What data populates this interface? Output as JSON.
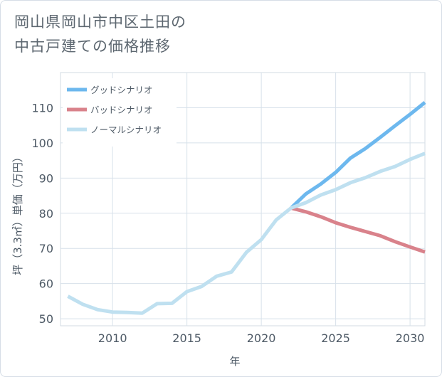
{
  "title_lines": [
    "岡山県岡山市中区土田の",
    "中古戸建ての価格推移"
  ],
  "chart_data": {
    "type": "line",
    "title": "岡山県岡山市中区土田の中古戸建ての価格推移",
    "xlabel": "年",
    "ylabel": "坪（3.3㎡）単価（万円）",
    "xlim": [
      2006.5,
      2031
    ],
    "ylim": [
      48,
      120
    ],
    "x_ticks": [
      2010,
      2015,
      2020,
      2025,
      2030
    ],
    "y_ticks": [
      50,
      60,
      70,
      80,
      90,
      100,
      110
    ],
    "grid": true,
    "legend_position": "top-left",
    "series": [
      {
        "name": "グッドシナリオ",
        "color": "#6db8ee",
        "x": [
          2022,
          2023,
          2024,
          2025,
          2026,
          2027,
          2028,
          2029,
          2030,
          2031
        ],
        "values": [
          81.5,
          85.5,
          88.3,
          91.6,
          95.7,
          98.4,
          101.6,
          104.9,
          108.1,
          111.5
        ]
      },
      {
        "name": "バッドシナリオ",
        "color": "#d9828b",
        "x": [
          2022,
          2023,
          2024,
          2025,
          2026,
          2027,
          2028,
          2029,
          2030,
          2031
        ],
        "values": [
          81.5,
          80.4,
          79.0,
          77.3,
          76.0,
          74.8,
          73.6,
          71.9,
          70.4,
          69.0
        ]
      },
      {
        "name": "ノーマルシナリオ",
        "color": "#bfe0f0",
        "x": [
          2007,
          2008,
          2009,
          2010,
          2011,
          2012,
          2013,
          2014,
          2015,
          2016,
          2017,
          2018,
          2019,
          2020,
          2021,
          2022,
          2023,
          2024,
          2025,
          2026,
          2027,
          2028,
          2029,
          2030,
          2031
        ],
        "values": [
          56.4,
          54.1,
          52.6,
          51.9,
          51.8,
          51.6,
          54.3,
          54.4,
          57.7,
          59.2,
          62.1,
          63.3,
          68.9,
          72.5,
          78.1,
          81.5,
          83.0,
          85.2,
          86.7,
          88.7,
          90.1,
          91.9,
          93.3,
          95.3,
          97.0
        ]
      }
    ]
  }
}
